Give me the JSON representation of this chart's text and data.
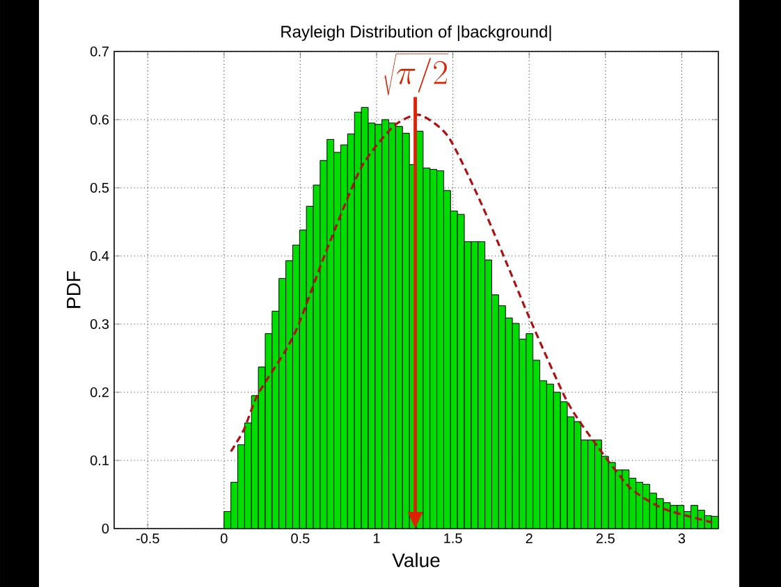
{
  "chart_data": {
    "type": "histogram",
    "title": "Rayleigh Distribution of |background|",
    "xlabel": "Value",
    "ylabel": "PDF",
    "xlim": [
      -0.72,
      3.24
    ],
    "ylim": [
      0,
      0.7
    ],
    "xticks": [
      -0.5,
      0,
      0.5,
      1,
      1.5,
      2,
      2.5,
      3
    ],
    "yticks": [
      0,
      0.1,
      0.2,
      0.3,
      0.4,
      0.5,
      0.6,
      0.7
    ],
    "grid": true,
    "series": [
      {
        "type": "histogram",
        "color": "#00dd00",
        "bins": [
          0,
          0.045,
          0.09,
          0.135,
          0.18,
          0.225,
          0.27,
          0.315,
          0.36,
          0.405,
          0.45,
          0.495,
          0.54,
          0.585,
          0.63,
          0.675,
          0.72,
          0.765,
          0.81,
          0.855,
          0.9,
          0.945,
          0.99,
          1.035,
          1.08,
          1.125,
          1.17,
          1.215,
          1.26,
          1.305,
          1.35,
          1.395,
          1.44,
          1.485,
          1.53,
          1.575,
          1.62,
          1.665,
          1.71,
          1.755,
          1.8,
          1.845,
          1.89,
          1.935,
          1.98,
          2.025,
          2.07,
          2.115,
          2.16,
          2.205,
          2.25,
          2.295,
          2.34,
          2.385,
          2.43,
          2.475,
          2.52,
          2.565,
          2.61,
          2.655,
          2.7,
          2.745,
          2.79,
          2.835,
          2.88,
          2.925,
          2.97,
          3.015,
          3.06,
          3.105,
          3.15,
          3.195,
          3.24
        ],
        "values": [
          0.025,
          0.068,
          0.123,
          0.155,
          0.195,
          0.237,
          0.286,
          0.319,
          0.367,
          0.393,
          0.416,
          0.438,
          0.473,
          0.504,
          0.54,
          0.571,
          0.552,
          0.563,
          0.579,
          0.611,
          0.618,
          0.595,
          0.593,
          0.6,
          0.595,
          0.59,
          0.58,
          0.534,
          0.583,
          0.529,
          0.527,
          0.525,
          0.496,
          0.466,
          0.461,
          0.421,
          0.421,
          0.421,
          0.394,
          0.343,
          0.327,
          0.309,
          0.301,
          0.278,
          0.286,
          0.247,
          0.217,
          0.212,
          0.2,
          0.186,
          0.164,
          0.157,
          0.13,
          0.13,
          0.13,
          0.106,
          0.097,
          0.086,
          0.086,
          0.074,
          0.068,
          0.065,
          0.052,
          0.044,
          0.038,
          0.034,
          0.034,
          0.025,
          0.034,
          0.027,
          0.019,
          0.018
        ]
      },
      {
        "type": "line",
        "color": "#b01010",
        "line_style": "dashed",
        "x": [
          0.045,
          0.13,
          0.22,
          0.4,
          0.49,
          0.675,
          0.9,
          1.11,
          1.28,
          1.47,
          1.68,
          1.87,
          2.0,
          2.25,
          2.45,
          2.66,
          2.87,
          3.08,
          3.2
        ],
        "values": [
          0.113,
          0.145,
          0.196,
          0.26,
          0.3,
          0.41,
          0.53,
          0.59,
          0.607,
          0.575,
          0.48,
          0.38,
          0.31,
          0.186,
          0.12,
          0.06,
          0.03,
          0.016,
          0.009
        ]
      }
    ],
    "ref_lines": [
      {
        "axis": "x",
        "value": 1.2533,
        "label": "\\sqrt{\\pi/2}",
        "color": "#dd2200"
      }
    ]
  }
}
